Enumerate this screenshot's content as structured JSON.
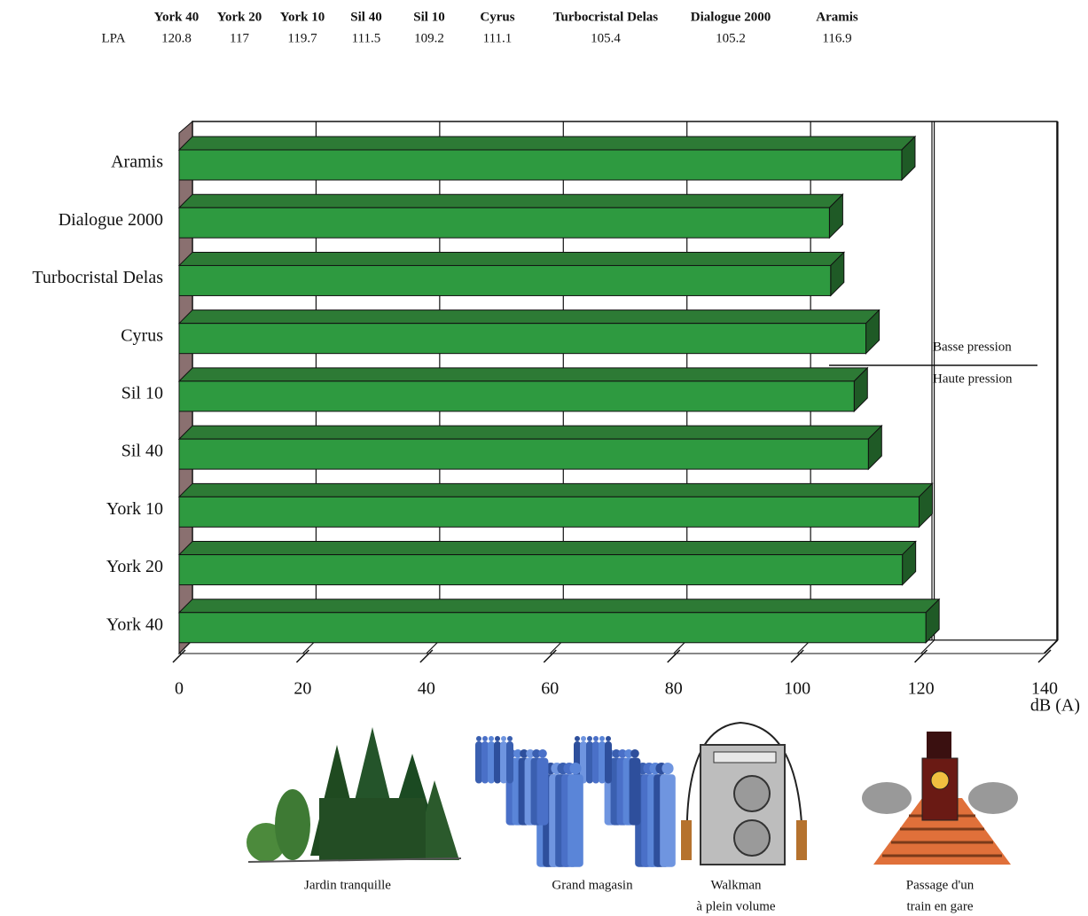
{
  "table": {
    "row_label": "LPA"
  },
  "chart_data": {
    "type": "bar3d",
    "categories": [
      "York 40",
      "York 20",
      "York 10",
      "Sil 40",
      "Sil 10",
      "Cyrus",
      "Turbocristal Delas",
      "Dialogue 2000",
      "Aramis"
    ],
    "values": [
      120.8,
      117,
      119.7,
      111.5,
      109.2,
      111.1,
      105.4,
      105.2,
      116.9
    ],
    "color": "#2e9a40",
    "xlim": [
      0,
      140
    ],
    "xticks": [
      0,
      20,
      40,
      60,
      80,
      100,
      120,
      140
    ],
    "x_label": "dB (A)",
    "annotations": [
      "Basse pression",
      "Haute pression"
    ],
    "grid": true
  },
  "illustrations": [
    {
      "caption": [
        "Jardin tranquille"
      ]
    },
    {
      "caption": [
        "Grand magasin"
      ]
    },
    {
      "caption": [
        "Walkman",
        "à plein volume"
      ]
    },
    {
      "caption": [
        "Passage d'un",
        "train en gare"
      ]
    }
  ]
}
